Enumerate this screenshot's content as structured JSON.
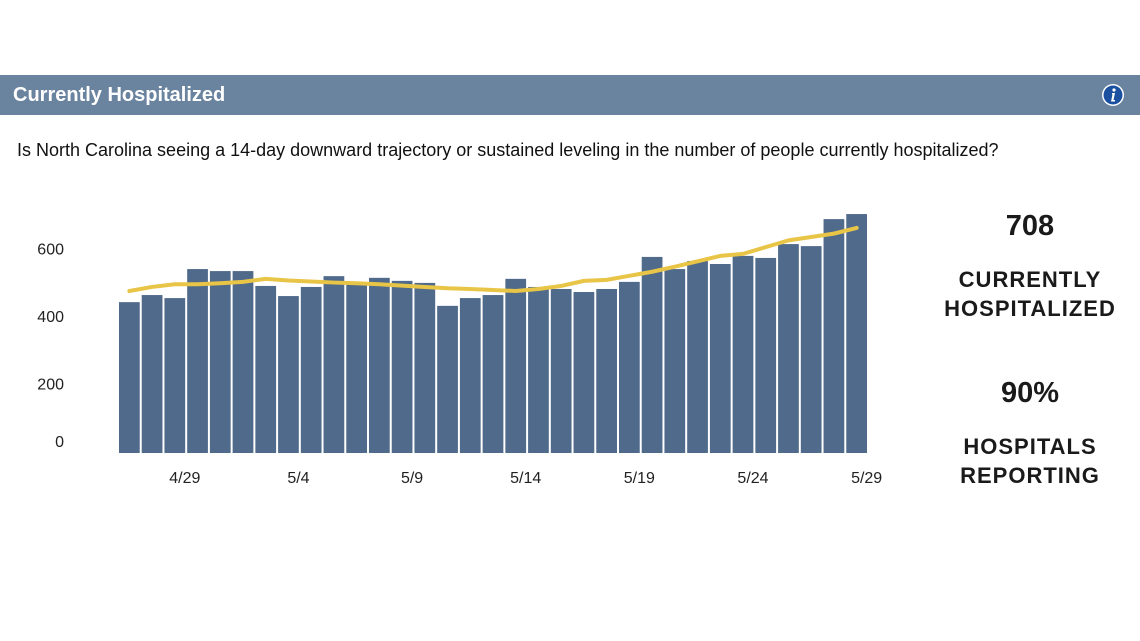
{
  "header": {
    "title": "Currently Hospitalized"
  },
  "question": "Is North Carolina seeing a 14-day downward trajectory or sustained leveling in the number of people currently hospitalized?",
  "chart_data": {
    "type": "bar",
    "categories": [
      null,
      null,
      "4/29",
      null,
      null,
      null,
      null,
      "5/4",
      null,
      null,
      null,
      null,
      "5/9",
      null,
      null,
      null,
      null,
      "5/14",
      null,
      null,
      null,
      null,
      "5/19",
      null,
      null,
      null,
      null,
      "5/24",
      null,
      null,
      null,
      null,
      "5/29"
    ],
    "series": [
      {
        "type": "bar",
        "color": "#4f6a8a",
        "values": [
          447,
          468,
          459,
          545,
          539,
          539,
          495,
          465,
          492,
          524,
          501,
          519,
          510,
          504,
          436,
          459,
          468,
          516,
          492,
          486,
          477,
          486,
          507,
          581,
          545,
          569,
          560,
          584,
          578,
          619,
          613,
          693,
          708
        ]
      },
      {
        "type": "line",
        "color": "#e8c547",
        "values": [
          480,
          492,
          500,
          500,
          503,
          507,
          516,
          511,
          508,
          505,
          503,
          500,
          496,
          492,
          488,
          486,
          483,
          480,
          486,
          495,
          510,
          513,
          525,
          537,
          552,
          568,
          584,
          590,
          610,
          630,
          640,
          650,
          667
        ]
      }
    ],
    "ylim": [
      0,
      720
    ],
    "yticks": [
      0,
      200,
      400,
      600
    ],
    "grid": false
  },
  "stats": [
    {
      "value": "708",
      "label": "CURRENTLY HOSPITALIZED"
    },
    {
      "value": "90%",
      "label": "HOSPITALS REPORTING"
    }
  ]
}
